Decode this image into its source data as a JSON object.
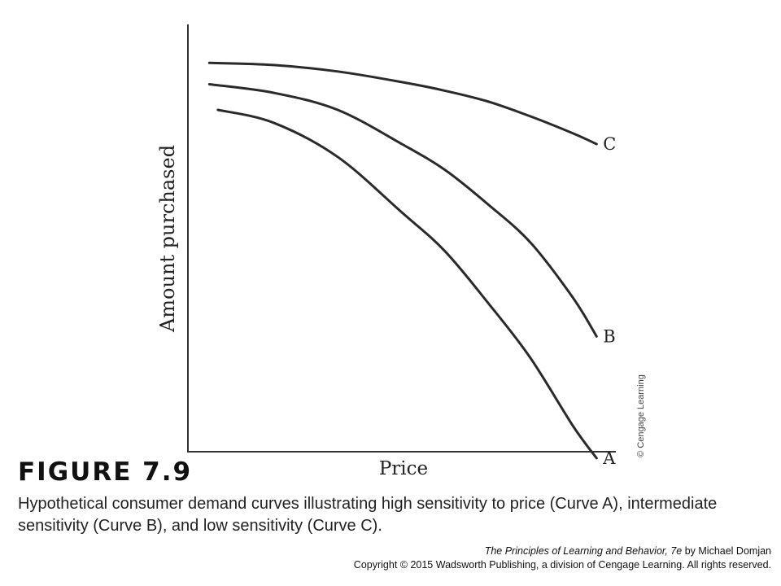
{
  "figure": {
    "label": "FIGURE 7.9",
    "caption": "Hypothetical consumer demand curves illustrating high sensitivity to price (Curve A), intermediate sensitivity (Curve B), and low sensitivity (Curve C).",
    "credit_book": "The Principles of Learning and Behavior, 7e",
    "credit_author": " by Michael Domjan",
    "copyright": "Copyright © 2015 Wadsworth Publishing, a division of Cengage Learning. All rights reserved.",
    "watermark": "© Cengage Learning"
  },
  "chart_data": {
    "type": "line",
    "xlabel": "Price",
    "ylabel": "Amount purchased",
    "xlim": [
      0,
      100
    ],
    "ylim": [
      0,
      100
    ],
    "grid": false,
    "series": [
      {
        "name": "A",
        "color": "#2a2a2a",
        "x": [
          7,
          20,
          35,
          50,
          60,
          70,
          80,
          90,
          95.5
        ],
        "y": [
          80,
          77,
          69,
          56,
          47,
          35,
          22,
          6,
          -1.5
        ]
      },
      {
        "name": "B",
        "color": "#2a2a2a",
        "x": [
          5,
          20,
          35,
          50,
          60,
          70,
          80,
          90,
          95.5
        ],
        "y": [
          86,
          84,
          80,
          72,
          66,
          58,
          49,
          36,
          27
        ]
      },
      {
        "name": "C",
        "color": "#2a2a2a",
        "x": [
          5,
          20,
          35,
          50,
          60,
          70,
          80,
          90,
          95.5
        ],
        "y": [
          91,
          90.5,
          89,
          86.5,
          84.5,
          82,
          78.5,
          74.5,
          72
        ]
      }
    ]
  }
}
